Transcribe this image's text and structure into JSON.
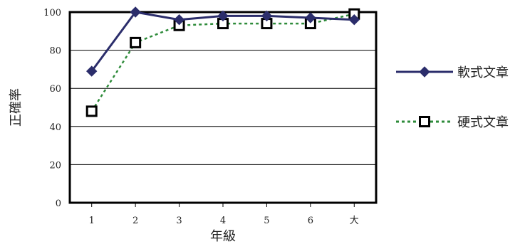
{
  "chart_data": {
    "type": "line",
    "categories": [
      "1",
      "2",
      "3",
      "4",
      "5",
      "6",
      "大"
    ],
    "xlabel": "年級",
    "ylabel": "正確率",
    "ylim": [
      0,
      100
    ],
    "yticks": [
      0,
      20,
      40,
      60,
      80,
      100
    ],
    "grid": true,
    "legend_position": "right",
    "series": [
      {
        "name": "軟式文章",
        "values": [
          69,
          100,
          96,
          98,
          98,
          97,
          96
        ],
        "color": "#2b2d6b",
        "marker": "diamond",
        "line_style": "solid"
      },
      {
        "name": "硬式文章",
        "values": [
          48,
          84,
          93,
          94,
          94,
          94,
          99
        ],
        "color": "#2e8b3a",
        "marker": "open-square",
        "line_style": "dotted"
      }
    ]
  }
}
